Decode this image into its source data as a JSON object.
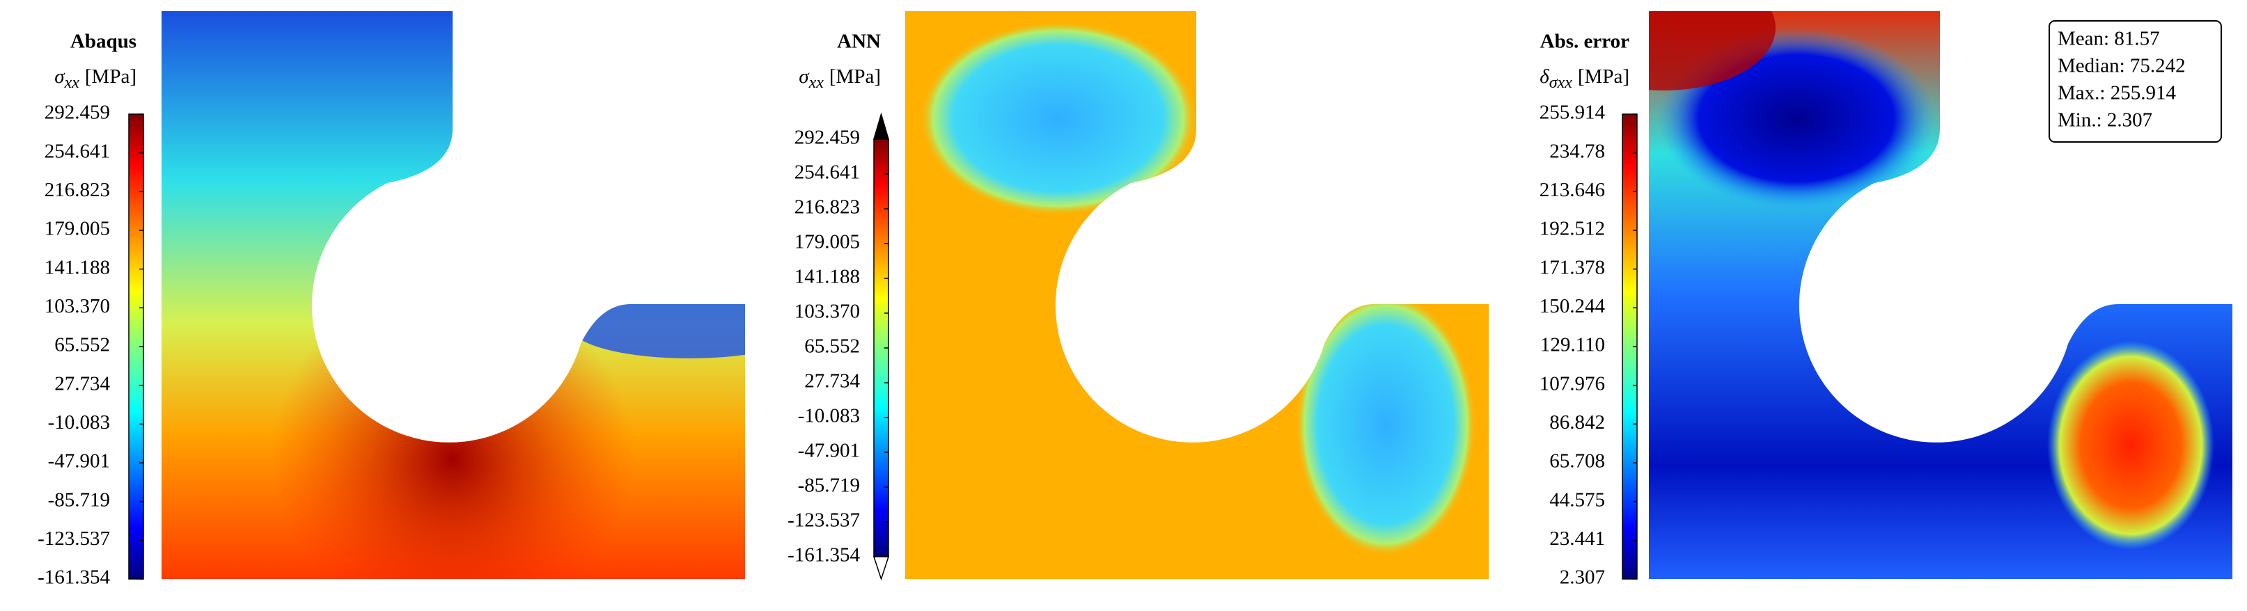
{
  "chart_data": [
    {
      "type": "contour",
      "title": "Abaqus",
      "symbol": "σ",
      "subscript": "xx",
      "unit": "[MPa]",
      "colormap": "jet",
      "ylim": [
        -161.354,
        292.459
      ],
      "yticks": [
        -161.354,
        -123.537,
        -85.719,
        -47.901,
        -10.083,
        27.734,
        65.552,
        {
          "value": 103.37,
          "label": "103.370"
        },
        141.188,
        179.005,
        216.823,
        254.641,
        292.459
      ]
    },
    {
      "type": "contour",
      "title": "ANN",
      "symbol": "σ",
      "subscript": "xx",
      "unit": "[MPa]",
      "colormap": "jet",
      "extend": "both",
      "ylim": [
        -161.354,
        292.459
      ],
      "yticks": [
        -161.354,
        -123.537,
        -85.719,
        -47.901,
        -10.083,
        27.734,
        65.552,
        {
          "value": 103.37,
          "label": "103.370"
        },
        141.188,
        179.005,
        216.823,
        254.641,
        292.459
      ]
    },
    {
      "type": "contour",
      "title": "Abs. error",
      "symbol": "δ",
      "subscript": "σxx",
      "unit": "[MPa]",
      "colormap": "jet",
      "ylim": [
        2.307,
        255.914
      ],
      "yticks": [
        2.307,
        23.441,
        44.575,
        65.708,
        86.842,
        107.976,
        {
          "value": 129.11,
          "label": "129.110"
        },
        150.244,
        171.378,
        192.512,
        213.646,
        234.78,
        255.914
      ],
      "stats": [
        "Mean: 81.57",
        "Median: 75.242",
        "Max.: 255.914",
        "Min.: 2.307"
      ]
    }
  ]
}
